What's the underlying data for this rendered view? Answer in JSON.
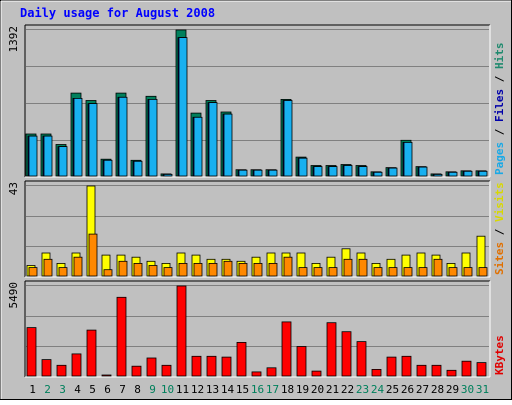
{
  "chart_data": {
    "type": "bar",
    "title": "Daily usage for August 2008",
    "categories": [
      "1",
      "2",
      "3",
      "4",
      "5",
      "6",
      "7",
      "8",
      "9",
      "10",
      "11",
      "12",
      "13",
      "14",
      "15",
      "16",
      "17",
      "18",
      "19",
      "20",
      "21",
      "22",
      "23",
      "24",
      "25",
      "26",
      "27",
      "28",
      "29",
      "30",
      "31"
    ],
    "weekend_days": [
      "2",
      "3",
      "9",
      "10",
      "16",
      "17",
      "23",
      "24",
      "30",
      "31"
    ],
    "panels": [
      {
        "id": "hits-panel",
        "max_label": "1392",
        "ylim": [
          0,
          1392
        ],
        "legend": [
          {
            "text": "Hits",
            "color": "#1f8a6e"
          },
          {
            "text": " / ",
            "color": "#000000"
          },
          {
            "text": "Files",
            "color": "#0000aa"
          },
          {
            "text": " / ",
            "color": "#000000"
          },
          {
            "text": "Pages",
            "color": "#19a9e6"
          }
        ],
        "series": [
          {
            "name": "Hits",
            "color": "#00805c",
            "values": [
              400,
              400,
              300,
              790,
              720,
              160,
              790,
              150,
              760,
              20,
              1392,
              600,
              720,
              610,
              60,
              60,
              60,
              730,
              180,
              100,
              100,
              110,
              100,
              40,
              80,
              340,
              90,
              20,
              40,
              50,
              50
            ]
          },
          {
            "name": "Files",
            "color": "#0000a8",
            "values": [
              380,
              380,
              280,
              740,
              690,
              150,
              750,
              140,
              730,
              15,
              1320,
              560,
              700,
              590,
              55,
              55,
              55,
              720,
              170,
              90,
              90,
              100,
              90,
              35,
              75,
              320,
              85,
              15,
              35,
              45,
              45
            ]
          },
          {
            "name": "Pages",
            "color": "#18b0f0",
            "values": [
              380,
              380,
              280,
              740,
              690,
              150,
              750,
              140,
              730,
              15,
              1320,
              560,
              700,
              590,
              55,
              55,
              55,
              720,
              170,
              90,
              90,
              100,
              90,
              35,
              75,
              320,
              85,
              15,
              35,
              45,
              45
            ]
          }
        ]
      },
      {
        "id": "visits-panel",
        "max_label": "43",
        "ylim": [
          0,
          43
        ],
        "legend": [
          {
            "text": "Visits",
            "color": "#d8d800"
          },
          {
            "text": " / ",
            "color": "#000000"
          },
          {
            "text": "Sites",
            "color": "#e07000"
          }
        ],
        "series": [
          {
            "name": "Visits",
            "color": "#ffff00",
            "values": [
              5,
              11,
              6,
              11,
              43,
              10,
              10,
              9,
              7,
              6,
              11,
              10,
              8,
              8,
              7,
              9,
              11,
              11,
              11,
              6,
              9,
              13,
              11,
              6,
              8,
              10,
              11,
              10,
              6,
              11,
              19
            ]
          },
          {
            "name": "Sites",
            "color": "#ff8800",
            "values": [
              4,
              8,
              4,
              9,
              20,
              3,
              7,
              6,
              5,
              4,
              6,
              6,
              6,
              7,
              6,
              6,
              6,
              9,
              4,
              4,
              4,
              8,
              8,
              4,
              4,
              4,
              4,
              8,
              4,
              4,
              4
            ]
          }
        ]
      },
      {
        "id": "kbytes-panel",
        "max_label": "5490",
        "ylim": [
          0,
          5490
        ],
        "legend": [
          {
            "text": "KBytes",
            "color": "#e00000"
          }
        ],
        "series": [
          {
            "name": "KBytes",
            "color": "#ff0000",
            "values": [
              2950,
              1000,
              650,
              1350,
              2800,
              60,
              4800,
              600,
              1100,
              650,
              5490,
              1200,
              1200,
              1150,
              2050,
              250,
              500,
              3300,
              1800,
              300,
              3250,
              2700,
              2100,
              400,
              1150,
              1200,
              650,
              650,
              350,
              900,
              820
            ]
          }
        ]
      }
    ]
  }
}
